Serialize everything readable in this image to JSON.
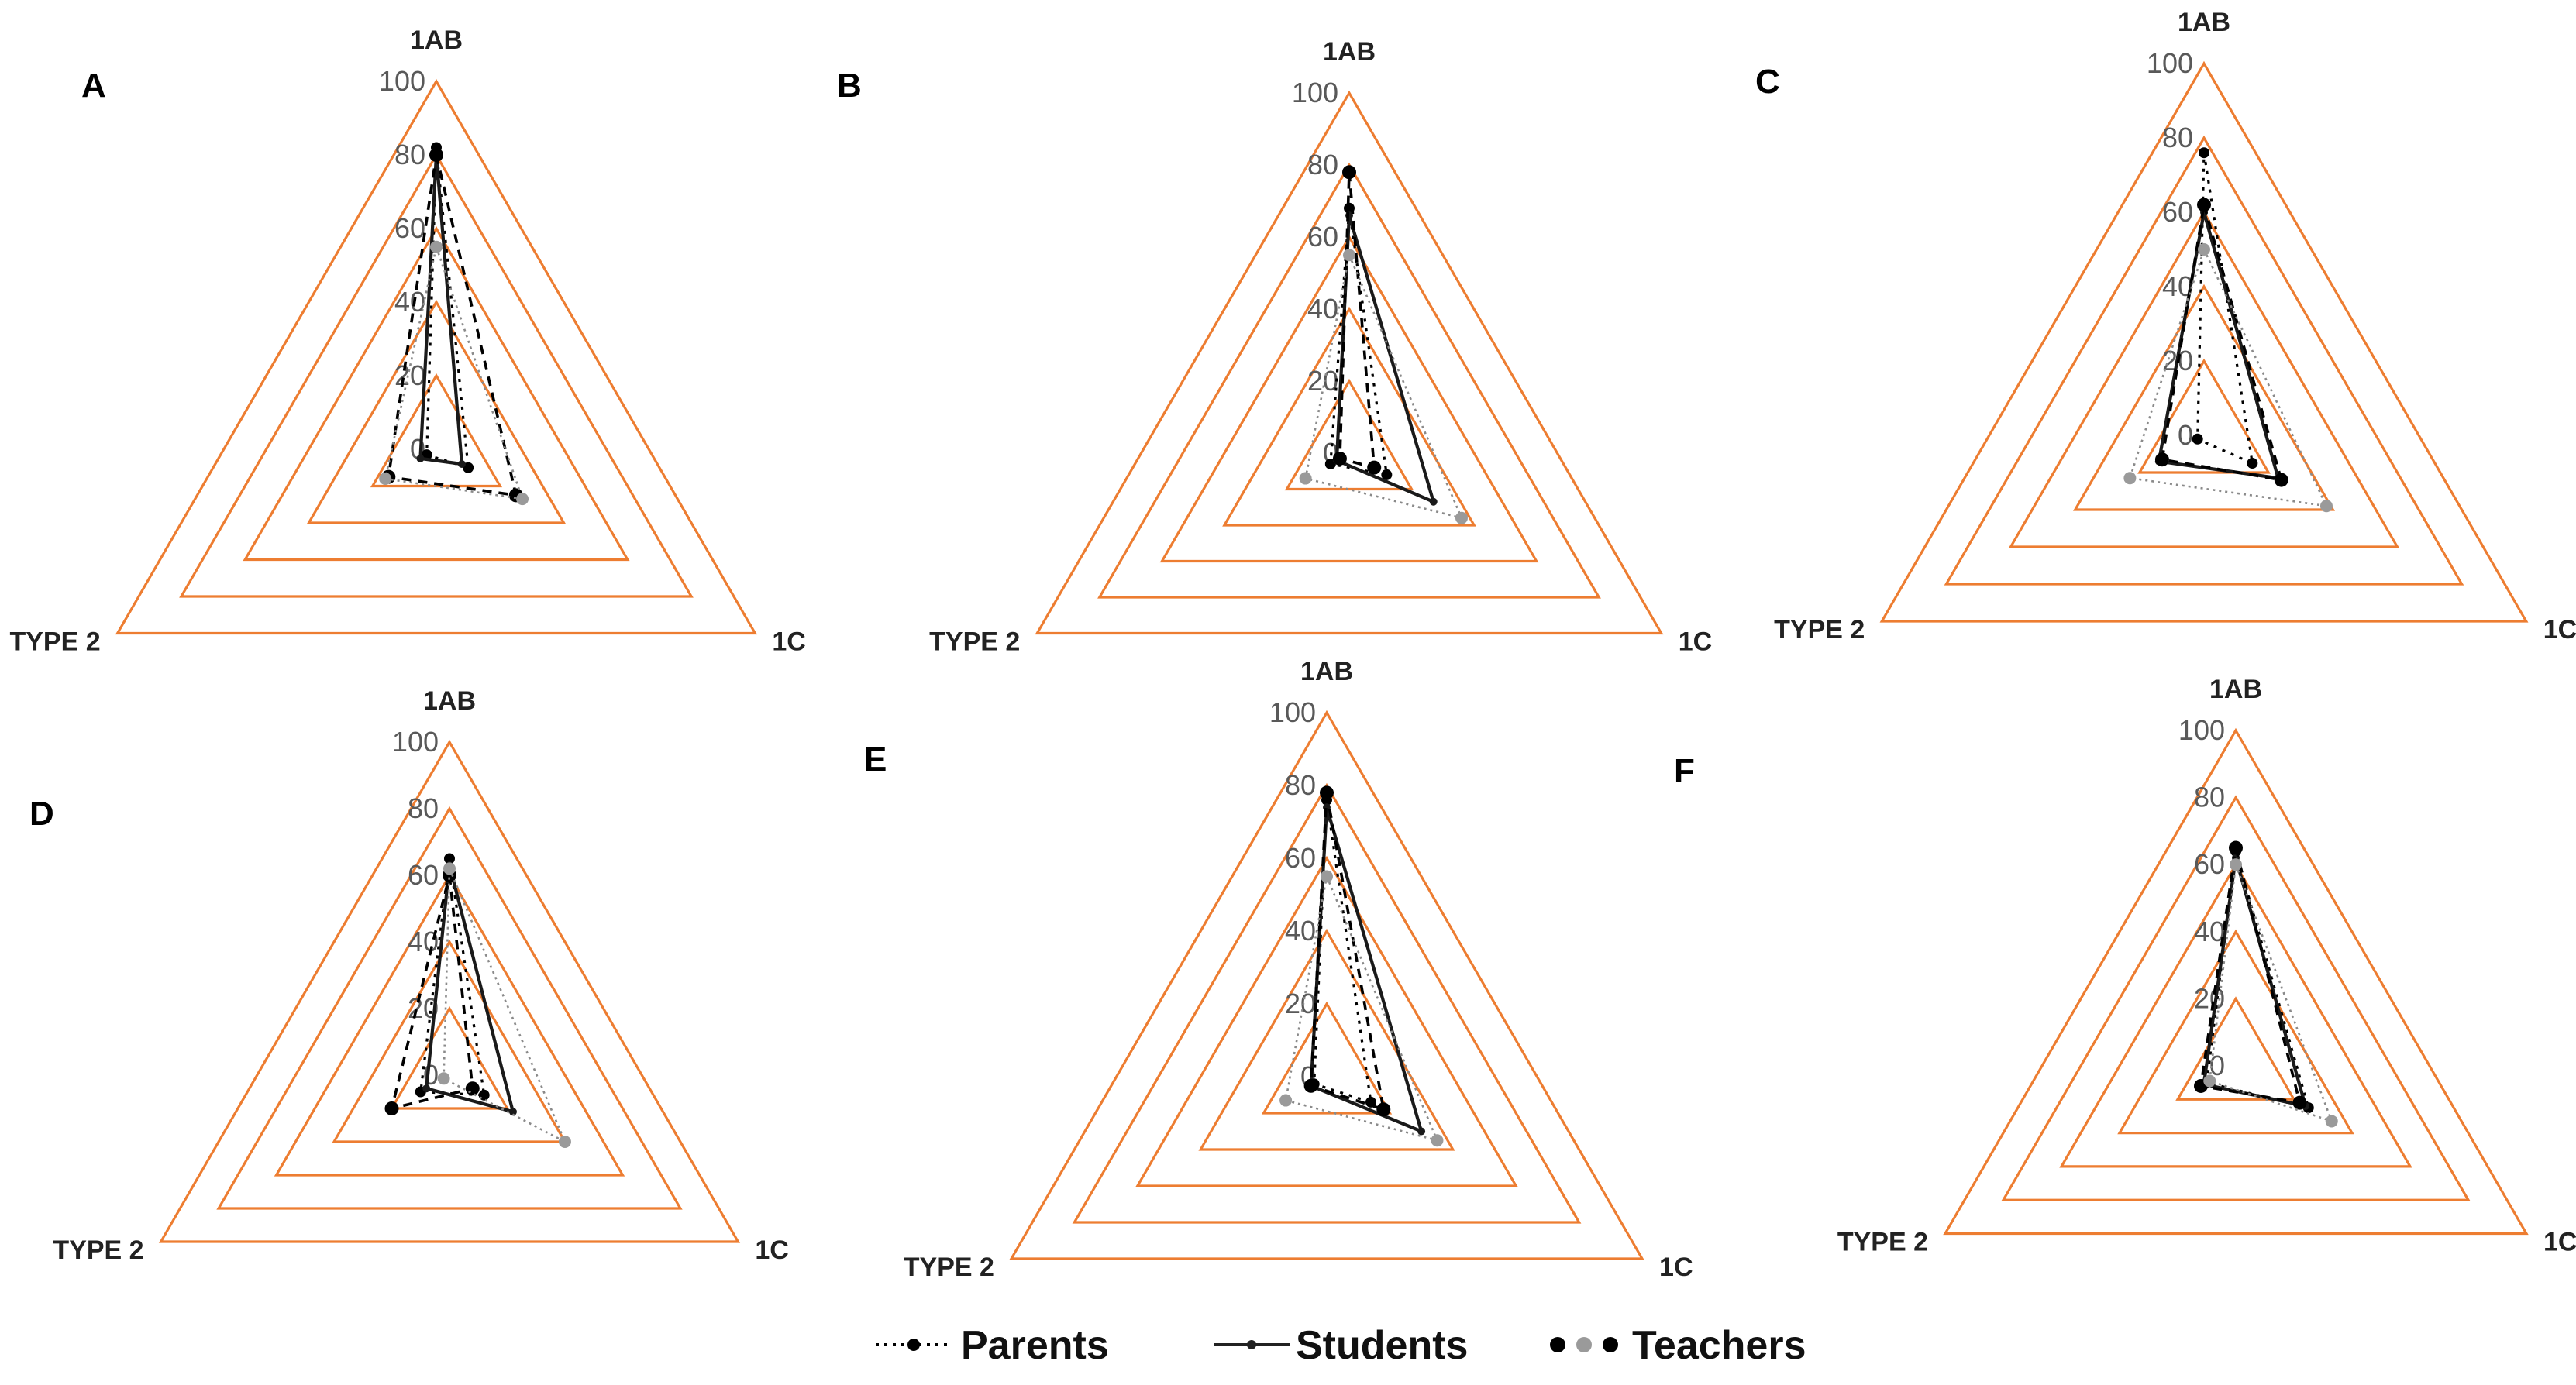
{
  "chart_data": [
    {
      "type": "radar",
      "panel": "A",
      "axes": [
        "1AB",
        "1C",
        "TYPE 2"
      ],
      "rlim": [
        0,
        100
      ],
      "ticks": [
        "0",
        "20",
        "40",
        "60",
        "80",
        "100"
      ],
      "series": [
        {
          "name": "Parents",
          "values": [
            82,
            10,
            3
          ]
        },
        {
          "name": "Students",
          "values": [
            80,
            8,
            5
          ]
        },
        {
          "name": "Teachers",
          "values": [
            80,
            25,
            15
          ]
        },
        {
          "name": "Teachers",
          "values": [
            55,
            27,
            16
          ]
        }
      ]
    },
    {
      "type": "radar",
      "panel": "B",
      "axes": [
        "1AB",
        "1C",
        "TYPE 2"
      ],
      "rlim": [
        0,
        100
      ],
      "ticks": [
        "0",
        "20",
        "40",
        "60",
        "80",
        "100"
      ],
      "series": [
        {
          "name": "Parents",
          "values": [
            68,
            12,
            6
          ]
        },
        {
          "name": "Students",
          "values": [
            66,
            27,
            4
          ]
        },
        {
          "name": "Teachers",
          "values": [
            78,
            8,
            3
          ]
        },
        {
          "name": "Teachers",
          "values": [
            55,
            36,
            14
          ]
        }
      ]
    },
    {
      "type": "radar",
      "panel": "C",
      "axes": [
        "1AB",
        "1C",
        "TYPE 2"
      ],
      "rlim": [
        0,
        100
      ],
      "ticks": [
        "0",
        "20",
        "40",
        "60",
        "80",
        "100"
      ],
      "series": [
        {
          "name": "Parents",
          "values": [
            76,
            15,
            2
          ]
        },
        {
          "name": "Students",
          "values": [
            60,
            23,
            14
          ]
        },
        {
          "name": "Teachers",
          "values": [
            62,
            24,
            13
          ]
        },
        {
          "name": "Teachers",
          "values": [
            50,
            38,
            23
          ]
        }
      ]
    },
    {
      "type": "radar",
      "panel": "D",
      "axes": [
        "1AB",
        "1C",
        "TYPE 2"
      ],
      "rlim": [
        0,
        100
      ],
      "ticks": [
        "0",
        "20",
        "40",
        "60",
        "80",
        "100"
      ],
      "series": [
        {
          "name": "Parents",
          "values": [
            65,
            12,
            10
          ]
        },
        {
          "name": "Students",
          "values": [
            63,
            22,
            8
          ]
        },
        {
          "name": "Teachers",
          "values": [
            60,
            8,
            20
          ]
        },
        {
          "name": "Teachers",
          "values": [
            62,
            40,
            2
          ]
        }
      ]
    },
    {
      "type": "radar",
      "panel": "E",
      "axes": [
        "1AB",
        "1C",
        "TYPE 2"
      ],
      "rlim": [
        0,
        100
      ],
      "ticks": [
        "0",
        "20",
        "40",
        "60",
        "80",
        "100"
      ],
      "series": [
        {
          "name": "Parents",
          "values": [
            76,
            14,
            4
          ]
        },
        {
          "name": "Students",
          "values": [
            74,
            30,
            5
          ]
        },
        {
          "name": "Teachers",
          "values": [
            78,
            18,
            5
          ]
        },
        {
          "name": "Teachers",
          "values": [
            55,
            35,
            13
          ]
        }
      ]
    },
    {
      "type": "radar",
      "panel": "F",
      "axes": [
        "1AB",
        "1C",
        "TYPE 2"
      ],
      "rlim": [
        0,
        100
      ],
      "ticks": [
        "0",
        "20",
        "40",
        "60",
        "80",
        "100"
      ],
      "series": [
        {
          "name": "Parents",
          "values": [
            64,
            25,
            10
          ]
        },
        {
          "name": "Students",
          "values": [
            62,
            24,
            11
          ]
        },
        {
          "name": "Teachers",
          "values": [
            65,
            22,
            12
          ]
        },
        {
          "name": "Teachers",
          "values": [
            60,
            33,
            9
          ]
        }
      ]
    }
  ],
  "legend": {
    "items": [
      {
        "label": "Parents",
        "style": "dotted"
      },
      {
        "label": "Students",
        "style": "solid"
      },
      {
        "label": "Teachers",
        "style": "dots"
      }
    ]
  },
  "colors": {
    "grid": "#ED7D31",
    "parents": "#000000",
    "students": "#1a1a1a",
    "teachers_dark": "#000000",
    "teachers_light": "#9a9a9a"
  }
}
